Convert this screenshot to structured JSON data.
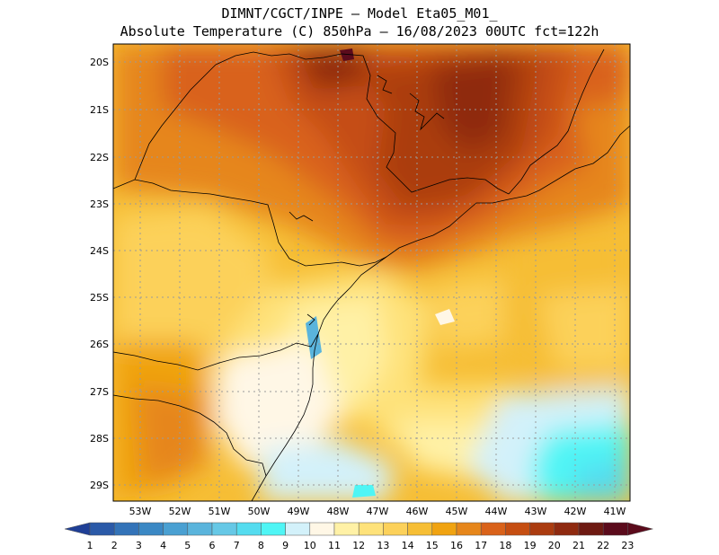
{
  "title": {
    "line1": "DIMNT/CGCT/INPE –  Model Eta05_M01_",
    "line2": "Absolute Temperature (C) 850hPa –  16/08/2023 00UTC fct=122h"
  },
  "map": {
    "lat_labels": [
      "20S",
      "21S",
      "22S",
      "23S",
      "24S",
      "25S",
      "26S",
      "27S",
      "28S",
      "29S"
    ],
    "lon_labels": [
      "53W",
      "52W",
      "51W",
      "50W",
      "49W",
      "48W",
      "47W",
      "46W",
      "45W",
      "44W",
      "43W",
      "42W",
      "41W"
    ]
  },
  "colorbar": {
    "labels": [
      "1",
      "2",
      "3",
      "4",
      "5",
      "6",
      "7",
      "8",
      "9",
      "10",
      "11",
      "12",
      "13",
      "14",
      "15",
      "16",
      "17",
      "18",
      "19",
      "20",
      "21",
      "22",
      "23"
    ],
    "colors": [
      "#1f3f96",
      "#2b5aa8",
      "#3373b8",
      "#3b88c4",
      "#4aa0d2",
      "#5ab4dc",
      "#66c8e6",
      "#55dcef",
      "#4ff5f5",
      "#d3f1fa",
      "#fff7e6",
      "#fff1a6",
      "#fee27a",
      "#fcd15a",
      "#f6be35",
      "#f0a311",
      "#e6861b",
      "#d9621a",
      "#c54e12",
      "#ab3c10",
      "#8f2a10",
      "#6e1a12",
      "#5b0b1c"
    ]
  }
}
